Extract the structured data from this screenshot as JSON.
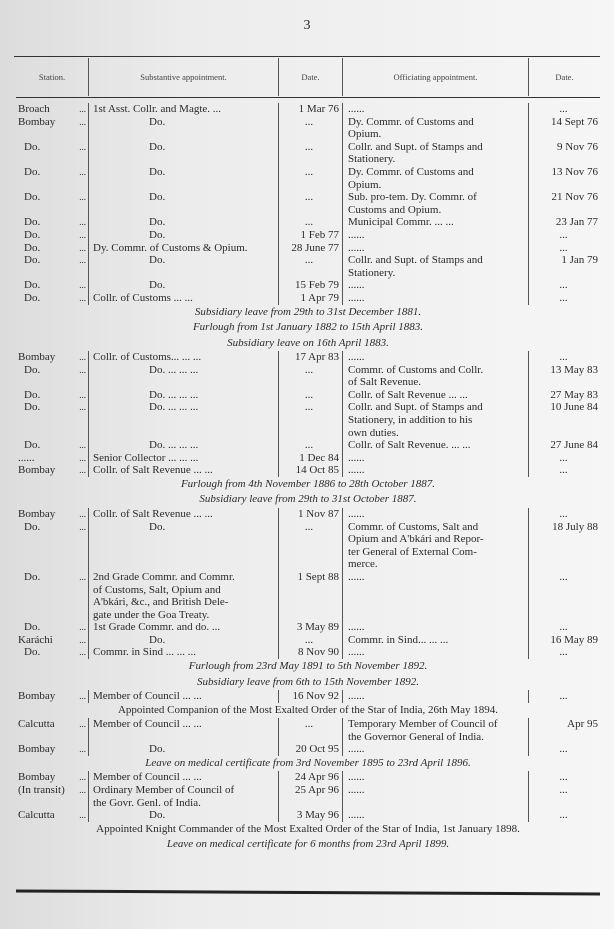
{
  "page_number": "3",
  "headers": [
    "Station.",
    "Substantive appointment.",
    "Date.",
    "Officiating appointment.",
    "Date."
  ],
  "entries": [
    {
      "station": "Broach",
      "sub": "1st Asst. Collr. and Magte.   ...",
      "d1": "1 Mar 76",
      "off": "......",
      "d2": "..."
    },
    {
      "station": "Bombay",
      "sub": "Do.",
      "sub_do": true,
      "d1": "...",
      "off": "Dy. Commr. of Customs and\nOpium.",
      "d2": "14 Sept 76"
    },
    {
      "station": "Do.",
      "sub": "Do.",
      "sub_do": true,
      "d1": "...",
      "off": "Collr. and Supt. of Stamps and\nStationery.",
      "d2": "9 Nov 76"
    },
    {
      "station": "Do.",
      "sub": "Do.",
      "sub_do": true,
      "d1": "...",
      "off": "Dy. Commr. of Customs and\nOpium.",
      "d2": "13 Nov 76"
    },
    {
      "station": "Do.",
      "sub": "Do.",
      "sub_do": true,
      "d1": "...",
      "off": "Sub. pro-tem. Dy. Commr. of\nCustoms and Opium.",
      "d2": "21 Nov 76"
    },
    {
      "station": "Do.",
      "sub": "Do.",
      "sub_do": true,
      "d1": "...",
      "off": "Municipal Commr.   ...   ...",
      "d2": "23 Jan 77"
    },
    {
      "station": "Do.",
      "sub": "Do.",
      "sub_do": true,
      "d1": "1 Feb 77",
      "off": "......",
      "d2": "..."
    },
    {
      "station": "Do.",
      "sub": "Dy. Commr. of Customs & Opium.",
      "d1": "28 June 77",
      "off": "......",
      "d2": "..."
    },
    {
      "station": "Do.",
      "sub": "Do.",
      "sub_do": true,
      "d1": "...",
      "off": "Collr. and Supt. of Stamps and\nStationery.",
      "d2": "1 Jan 79"
    },
    {
      "station": "Do.",
      "sub": "Do.",
      "sub_do": true,
      "d1": "15 Feb 79",
      "off": "......",
      "d2": "..."
    },
    {
      "station": "Do.",
      "sub": "Collr. of Customs   ...   ...",
      "d1": "1 Apr 79",
      "off": "......",
      "d2": "..."
    },
    {
      "note": "Subsidiary leave from 29th to 31st December 1881."
    },
    {
      "note": "Furlough from 1st January 1882 to 15th April 1883."
    },
    {
      "note": "Subsidiary leave on 16th April 1883."
    },
    {
      "station": "Bombay",
      "sub": "Collr. of Customs...   ...   ...",
      "d1": "17 Apr 83",
      "off": "......",
      "d2": "..."
    },
    {
      "station": "Do.",
      "sub": "Do.   ...   ...   ...",
      "sub_do": true,
      "d1": "...",
      "off": "Commr. of Customs and Collr.\nof Salt Revenue.",
      "d2": "13 May 83"
    },
    {
      "station": "Do.",
      "sub": "Do.   ...   ...   ...",
      "sub_do": true,
      "d1": "...",
      "off": "Collr. of Salt Revenue ...   ...",
      "d2": "27 May 83"
    },
    {
      "station": "Do.",
      "sub": "Do.   ...   ...   ...",
      "sub_do": true,
      "d1": "...",
      "off": "Collr. and Supt. of Stamps and\nStationery, in addition to his\nown duties.",
      "d2": "10 June 84"
    },
    {
      "station": "Do.",
      "sub": "Do.   ...   ...   ...",
      "sub_do": true,
      "d1": "...",
      "off": "Collr. of Salt Revenue. ...   ...",
      "d2": "27 June 84"
    },
    {
      "station": "......",
      "no_leader": true,
      "sub": "Senior Collector ...   ...   ...",
      "d1": "1 Dec 84",
      "off": "......",
      "d2": "..."
    },
    {
      "station": "Bombay",
      "sub": "Collr. of Salt Revenue   ...   ...",
      "d1": "14 Oct 85",
      "off": "......",
      "d2": "..."
    },
    {
      "note": "Furlough from 4th November 1886 to 28th October 1887."
    },
    {
      "note": "Subsidiary leave from 29th to 31st October 1887."
    },
    {
      "station": "Bombay",
      "sub": "Collr. of Salt Revenue ...   ...",
      "d1": "1 Nov 87",
      "off": "......",
      "d2": "..."
    },
    {
      "station": "Do.",
      "sub": "Do.",
      "sub_do": true,
      "d1": "...",
      "off": "Commr. of Customs, Salt and\nOpium and A'bkári and Repor-\nter General of External Com-\nmerce.",
      "d2": "18 July 88"
    },
    {
      "station": "Do.",
      "sub": "2nd Grade Commr. and Commr.\n   of Customs, Salt, Opium and\n   A'bkári, &c., and British Dele-\n   gate under the Goa Treaty.",
      "d1": "1 Sept 88",
      "off": "......",
      "d2": "..."
    },
    {
      "station": "Do.",
      "sub": "1st Grade Commr. and   do.  ...",
      "d1": "3 May 89",
      "off": "......",
      "d2": "..."
    },
    {
      "station": "Karáchi",
      "sub": "Do.",
      "sub_do": true,
      "d1": "...",
      "off": "Commr. in Sind...   ...   ...",
      "d2": "16 May 89"
    },
    {
      "station": "Do.",
      "sub": "Commr. in Sind ...   ...   ...",
      "d1": "8 Nov 90",
      "off": "......",
      "d2": "..."
    },
    {
      "note": "Furlough from 23rd May 1891 to 5th November 1892."
    },
    {
      "note": "Subsidiary leave from 6th to 15th November 1892."
    },
    {
      "station": "Bombay",
      "sub": "Member of Council   ...   ...",
      "d1": "16 Nov 92",
      "off": "......",
      "d2": "..."
    },
    {
      "note": "Appointed Companion of the Most Exalted Order of the Star of India, 26th May 1894.",
      "plain": true
    },
    {
      "station": "Calcutta",
      "sub": "Member of Council   ...   ...",
      "d1": "...",
      "off": "Temporary Member of Council of\nthe Governor General of India.",
      "d2": "Apr 95"
    },
    {
      "station": "Bombay",
      "sub": "Do.",
      "sub_do": true,
      "d1": "20 Oct 95",
      "off": "......",
      "d2": "..."
    },
    {
      "note": "Leave on medical certificate from 3rd November 1895 to 23rd April 1896."
    },
    {
      "station": "Bombay",
      "sub": "Member of Council   ...   ...",
      "d1": "24 Apr 96",
      "off": "......",
      "d2": "..."
    },
    {
      "station": "(In transit)",
      "sub": "Ordinary Member of Council of\n   the Govr. Genl. of India.",
      "d1": "25 Apr 96",
      "off": "......",
      "d2": "..."
    },
    {
      "station": "Calcutta",
      "sub": "Do.",
      "sub_do": true,
      "d1": "3 May 96",
      "off": "......",
      "d2": "..."
    },
    {
      "note": "Appointed Knight Commander of the Most Exalted Order of the Star of India, 1st January 1898.",
      "plain": true
    },
    {
      "note": "Leave on medical certificate for 6 months from 23rd April 1899."
    }
  ]
}
